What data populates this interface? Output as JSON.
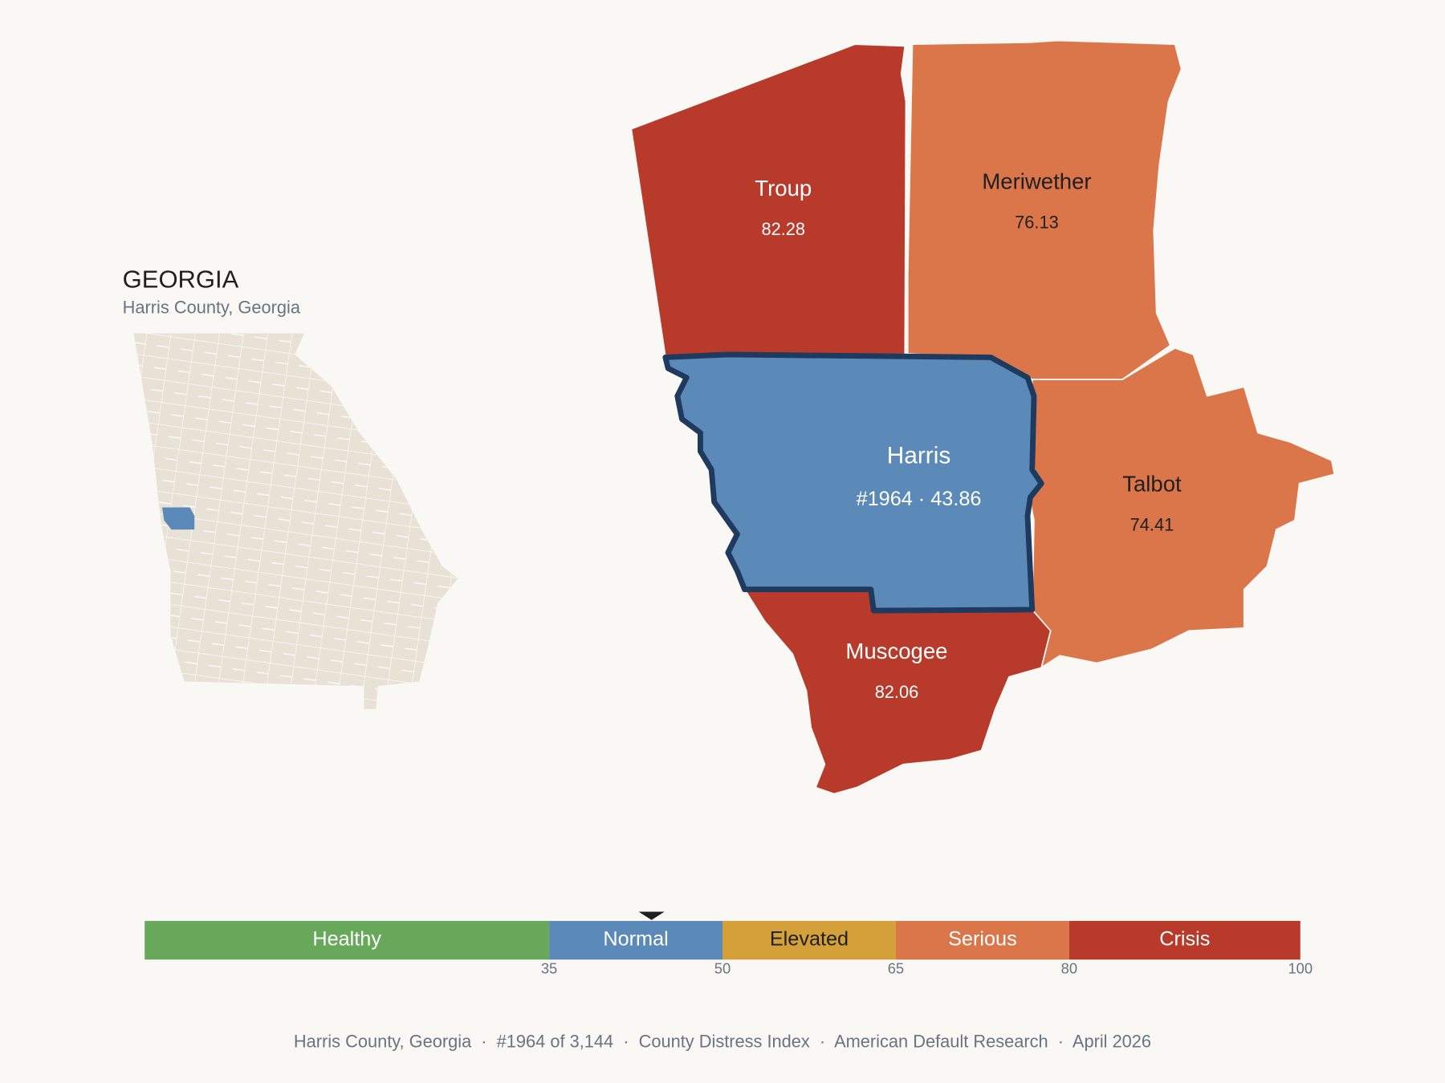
{
  "inset": {
    "title": "GEORGIA",
    "subtitle": "Harris County, Georgia"
  },
  "counties": [
    {
      "name": "Troup",
      "value": 82.28
    },
    {
      "name": "Meriwether",
      "value": 76.13
    },
    {
      "name": "Harris",
      "value": 43.86,
      "value_label": "#1964 · 43.86"
    },
    {
      "name": "Talbot",
      "value": 74.41
    },
    {
      "name": "Muscogee",
      "value": 82.06
    }
  ],
  "scale": {
    "range": [
      0,
      100
    ],
    "ticks": [
      35,
      50,
      65,
      80,
      100
    ],
    "bands": [
      {
        "name": "Healthy",
        "color": "#67a85a"
      },
      {
        "name": "Normal",
        "color": "#5b8ab9"
      },
      {
        "name": "Elevated",
        "color": "#d4a03a"
      },
      {
        "name": "Serious",
        "color": "#db764a"
      },
      {
        "name": "Crisis",
        "color": "#b83a2b"
      }
    ]
  },
  "footer": "Harris County, Georgia  ·  #1964 of 3,144  ·  County Distress Index  ·  American Default Research  ·  April 2026"
}
